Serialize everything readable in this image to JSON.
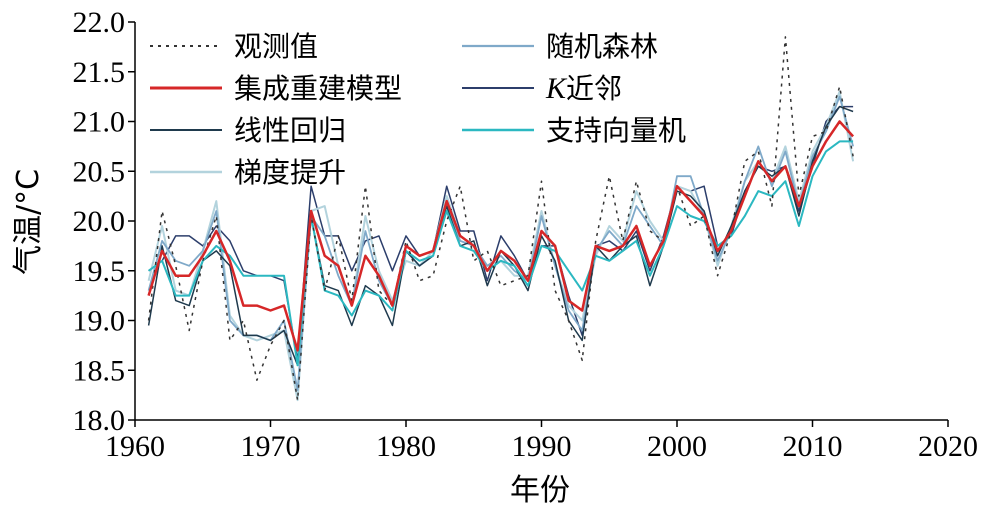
{
  "chart_data": {
    "type": "line",
    "xlabel": "年份",
    "ylabel": "气温/°C",
    "xlim": [
      1960,
      2020
    ],
    "ylim": [
      18.0,
      22.0
    ],
    "xticks": [
      "1960",
      "1970",
      "1980",
      "1990",
      "2000",
      "2010",
      "2020"
    ],
    "yticks": [
      "18.0",
      "18.5",
      "19.0",
      "19.5",
      "20.0",
      "20.5",
      "21.0",
      "21.5",
      "22.0"
    ],
    "legend_placement": "top-left",
    "x": [
      1961,
      1962,
      1963,
      1964,
      1965,
      1966,
      1967,
      1968,
      1969,
      1970,
      1971,
      1972,
      1973,
      1974,
      1975,
      1976,
      1977,
      1978,
      1979,
      1980,
      1981,
      1982,
      1983,
      1984,
      1985,
      1986,
      1987,
      1988,
      1989,
      1990,
      1991,
      1992,
      1993,
      1994,
      1995,
      1996,
      1997,
      1998,
      1999,
      2000,
      2001,
      2002,
      2003,
      2004,
      2005,
      2006,
      2007,
      2008,
      2009,
      2010,
      2011,
      2012,
      2013
    ],
    "series": [
      {
        "name": "观测值",
        "color": "#333333",
        "dash": "3,5",
        "width": 1.5,
        "values": [
          19.0,
          20.1,
          19.55,
          18.9,
          19.6,
          20.05,
          18.8,
          19.0,
          18.4,
          18.75,
          19.0,
          18.2,
          20.05,
          19.3,
          19.85,
          19.2,
          20.35,
          19.3,
          19.15,
          19.8,
          19.4,
          19.45,
          20.0,
          20.35,
          19.6,
          19.7,
          19.35,
          19.4,
          19.45,
          20.4,
          19.3,
          19.0,
          18.6,
          19.8,
          20.45,
          19.8,
          20.4,
          19.9,
          19.8,
          20.35,
          19.95,
          20.05,
          19.45,
          19.9,
          20.6,
          20.7,
          20.15,
          21.85,
          20.25,
          20.85,
          20.9,
          21.35,
          20.65
        ]
      },
      {
        "name": "集成重建模型",
        "color": "#d62728",
        "dash": "",
        "width": 2.5,
        "values": [
          19.25,
          19.7,
          19.45,
          19.45,
          19.65,
          19.9,
          19.6,
          19.15,
          19.15,
          19.1,
          19.15,
          18.7,
          20.1,
          19.65,
          19.55,
          19.15,
          19.65,
          19.45,
          19.15,
          19.75,
          19.65,
          19.7,
          20.2,
          19.85,
          19.75,
          19.5,
          19.7,
          19.6,
          19.4,
          19.9,
          19.75,
          19.2,
          19.1,
          19.75,
          19.7,
          19.75,
          19.95,
          19.55,
          19.8,
          20.35,
          20.2,
          20.05,
          19.7,
          19.9,
          20.25,
          20.6,
          20.4,
          20.55,
          20.15,
          20.55,
          20.8,
          21.0,
          20.85
        ]
      },
      {
        "name": "线性回归",
        "color": "#1f3a4d",
        "dash": "",
        "width": 1.5,
        "values": [
          18.95,
          19.75,
          19.2,
          19.15,
          19.6,
          19.7,
          19.55,
          18.85,
          18.85,
          18.8,
          18.9,
          18.55,
          20.05,
          19.35,
          19.3,
          18.95,
          19.35,
          19.25,
          18.95,
          19.7,
          19.55,
          19.65,
          20.15,
          19.75,
          19.8,
          19.35,
          19.7,
          19.55,
          19.3,
          19.85,
          19.6,
          19.0,
          18.8,
          19.75,
          19.6,
          19.75,
          19.85,
          19.35,
          19.75,
          20.3,
          20.25,
          20.1,
          19.65,
          19.95,
          20.3,
          20.55,
          20.45,
          20.55,
          20.05,
          20.6,
          20.95,
          21.15,
          21.1
        ]
      },
      {
        "name": "梯度提升",
        "color": "#b3d3dd",
        "dash": "",
        "width": 2,
        "values": [
          19.4,
          19.95,
          19.3,
          19.25,
          19.7,
          20.2,
          19.05,
          18.85,
          18.8,
          18.85,
          18.9,
          18.2,
          20.1,
          20.15,
          19.55,
          19.15,
          20.05,
          19.5,
          19.2,
          19.6,
          19.55,
          19.7,
          20.25,
          19.85,
          19.75,
          19.55,
          19.6,
          19.45,
          19.45,
          20.1,
          19.55,
          19.15,
          19.0,
          19.65,
          19.95,
          19.8,
          20.3,
          20.0,
          19.8,
          20.35,
          20.3,
          20.05,
          19.55,
          19.95,
          20.4,
          20.6,
          20.4,
          20.75,
          20.2,
          20.7,
          20.95,
          21.3,
          20.6
        ]
      },
      {
        "name": "随机森林",
        "color": "#7fa9c9",
        "dash": "",
        "width": 1.8,
        "values": [
          19.3,
          19.8,
          19.6,
          19.55,
          19.7,
          20.1,
          19.0,
          18.85,
          18.85,
          18.8,
          19.0,
          18.3,
          20.05,
          19.85,
          19.45,
          19.15,
          19.9,
          19.4,
          19.15,
          19.7,
          19.55,
          19.65,
          20.2,
          19.8,
          19.75,
          19.55,
          19.65,
          19.5,
          19.4,
          20.05,
          19.55,
          19.1,
          18.9,
          19.7,
          19.9,
          19.75,
          20.15,
          19.95,
          19.75,
          20.45,
          20.45,
          20.05,
          19.6,
          19.9,
          20.4,
          20.75,
          20.35,
          20.7,
          20.15,
          20.65,
          20.9,
          21.25,
          20.75
        ]
      },
      {
        "name": "K近邻",
        "color": "#2c3e6b",
        "dash": "",
        "width": 1.5,
        "values": [
          19.5,
          19.6,
          19.85,
          19.85,
          19.75,
          19.95,
          19.8,
          19.5,
          19.45,
          19.45,
          19.4,
          18.6,
          20.35,
          19.85,
          19.85,
          19.5,
          19.8,
          19.85,
          19.5,
          19.85,
          19.65,
          19.7,
          20.35,
          19.9,
          19.9,
          19.4,
          19.85,
          19.65,
          19.4,
          19.75,
          19.75,
          19.25,
          18.85,
          19.75,
          19.8,
          19.7,
          19.9,
          19.5,
          19.85,
          20.35,
          20.3,
          20.35,
          19.75,
          19.85,
          20.3,
          20.55,
          20.5,
          20.55,
          20.1,
          20.55,
          21.0,
          21.15,
          21.15
        ]
      },
      {
        "name": "支持向量机",
        "color": "#2bb8c1",
        "dash": "",
        "width": 2,
        "values": [
          19.5,
          19.6,
          19.25,
          19.25,
          19.6,
          19.75,
          19.65,
          19.45,
          19.45,
          19.45,
          19.45,
          18.55,
          20.05,
          19.3,
          19.25,
          19.05,
          19.3,
          19.25,
          19.1,
          19.7,
          19.6,
          19.65,
          20.1,
          19.75,
          19.7,
          19.5,
          19.6,
          19.55,
          19.35,
          19.75,
          19.7,
          19.5,
          19.3,
          19.65,
          19.6,
          19.7,
          19.8,
          19.45,
          19.75,
          20.15,
          20.05,
          20.0,
          19.75,
          19.85,
          20.05,
          20.3,
          20.25,
          20.4,
          19.95,
          20.45,
          20.7,
          20.8,
          20.8
        ]
      }
    ]
  }
}
